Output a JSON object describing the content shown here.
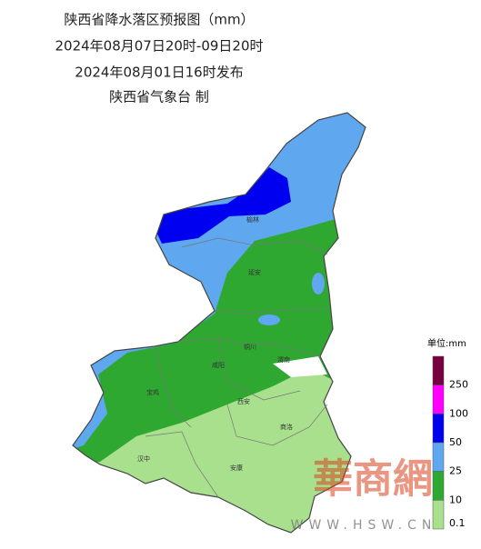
{
  "header": {
    "title": "陕西省降水落区预报图（mm）",
    "period": "2024年08月07日20时-09日20时",
    "issued": "2024年08月01日16时发布",
    "issuer": "陕西省气象台 制"
  },
  "legend": {
    "unit": "单位:mm",
    "colors": [
      "#77003f",
      "#ff00ff",
      "#0000f0",
      "#5fa8f0",
      "#2fa832",
      "#a8e08e"
    ],
    "labels": [
      "250",
      "100",
      "50",
      "25",
      "10",
      "0.1"
    ]
  },
  "cities": [
    "榆林",
    "延安",
    "铜川",
    "渭南",
    "咸阳",
    "宝鸡",
    "西安",
    "商洛",
    "汉中",
    "安康"
  ],
  "watermark": {
    "brand": "華商網",
    "url": "WWW.HSW.CN"
  }
}
